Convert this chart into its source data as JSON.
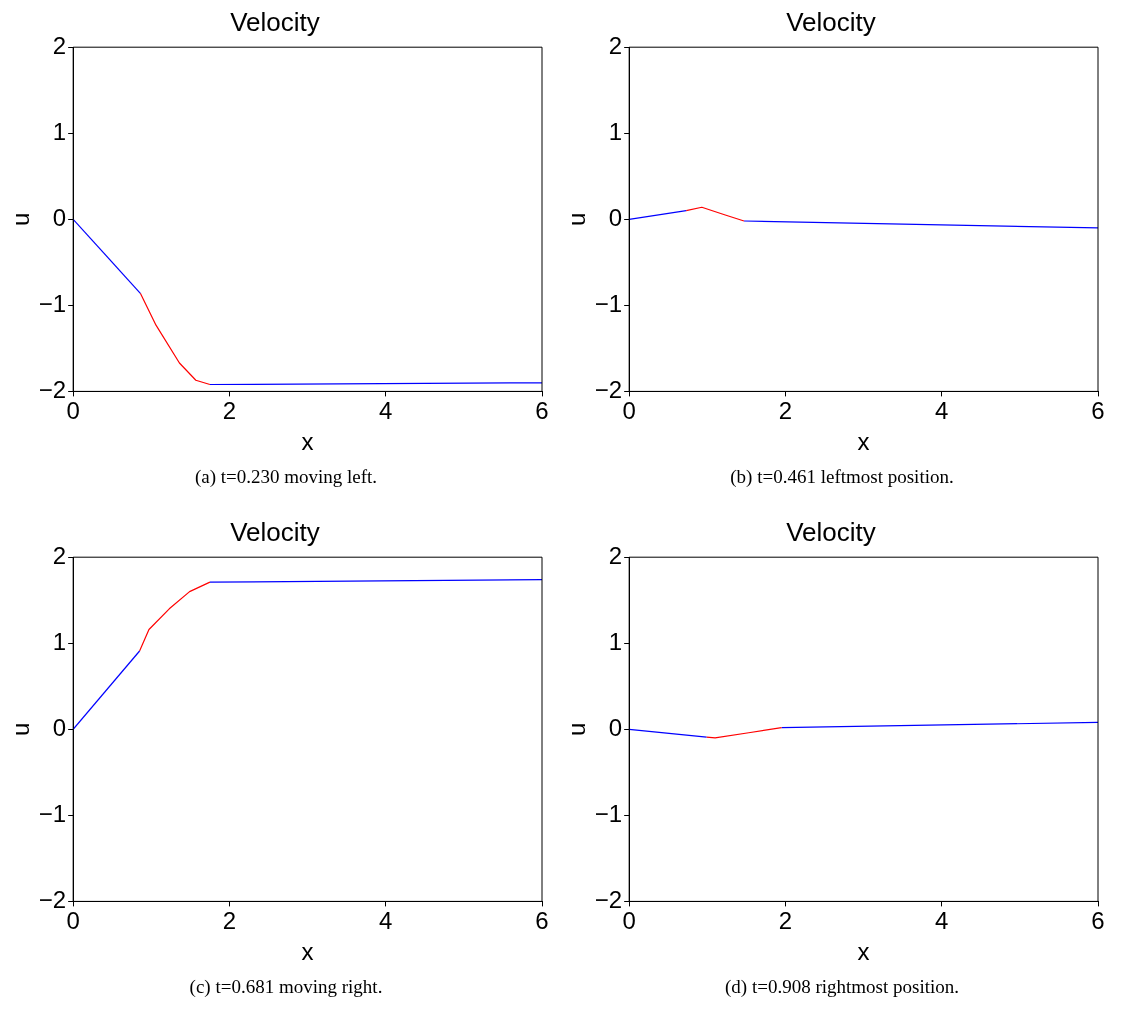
{
  "chart_data": [
    {
      "type": "line",
      "title": "Velocity",
      "xlabel": "x",
      "ylabel": "u",
      "xlim": [
        0,
        6
      ],
      "ylim": [
        -2,
        2
      ],
      "xticks": [
        0,
        2,
        4,
        6
      ],
      "yticks": [
        -2,
        -1,
        0,
        1,
        2
      ],
      "grid": false,
      "legend": false,
      "marker": "none",
      "line_style": "solid",
      "annotations": [
        "(a)  t=0.230 moving left."
      ],
      "series": [
        {
          "color": "#0000ff",
          "x": [
            0,
            0.86
          ],
          "values": [
            0,
            -0.86
          ]
        },
        {
          "color": "#ff0000",
          "x": [
            0.86,
            1.06,
            1.36,
            1.57,
            1.75
          ],
          "values": [
            -0.86,
            -1.23,
            -1.67,
            -1.87,
            -1.92
          ]
        },
        {
          "color": "#0000ff",
          "x": [
            1.75,
            6
          ],
          "values": [
            -1.92,
            -1.9
          ]
        }
      ]
    },
    {
      "type": "line",
      "title": "Velocity",
      "xlabel": "x",
      "ylabel": "u",
      "xlim": [
        0,
        6
      ],
      "ylim": [
        -2,
        2
      ],
      "xticks": [
        0,
        2,
        4,
        6
      ],
      "yticks": [
        -2,
        -1,
        0,
        1,
        2
      ],
      "grid": false,
      "legend": false,
      "marker": "none",
      "line_style": "solid",
      "annotations": [
        "(b)  t=0.461 leftmost position."
      ],
      "series": [
        {
          "color": "#0000ff",
          "x": [
            0,
            0.73
          ],
          "values": [
            0,
            0.1
          ]
        },
        {
          "color": "#ff0000",
          "x": [
            0.73,
            0.93,
            1.23,
            1.47
          ],
          "values": [
            0.1,
            0.14,
            0.05,
            -0.02
          ]
        },
        {
          "color": "#0000ff",
          "x": [
            1.47,
            6
          ],
          "values": [
            -0.02,
            -0.1
          ]
        }
      ]
    },
    {
      "type": "line",
      "title": "Velocity",
      "xlabel": "x",
      "ylabel": "u",
      "xlim": [
        0,
        6
      ],
      "ylim": [
        -2,
        2
      ],
      "xticks": [
        0,
        2,
        4,
        6
      ],
      "yticks": [
        -2,
        -1,
        0,
        1,
        2
      ],
      "grid": false,
      "legend": false,
      "marker": "none",
      "line_style": "solid",
      "annotations": [
        "(c)  t=0.681 moving right."
      ],
      "series": [
        {
          "color": "#0000ff",
          "x": [
            0,
            0.85
          ],
          "values": [
            0,
            0.91
          ]
        },
        {
          "color": "#ff0000",
          "x": [
            0.85,
            0.97,
            1.23,
            1.49,
            1.75
          ],
          "values": [
            0.91,
            1.16,
            1.4,
            1.6,
            1.71
          ]
        },
        {
          "color": "#0000ff",
          "x": [
            1.75,
            6
          ],
          "values": [
            1.71,
            1.74
          ]
        }
      ]
    },
    {
      "type": "line",
      "title": "Velocity",
      "xlabel": "x",
      "ylabel": "u",
      "xlim": [
        0,
        6
      ],
      "ylim": [
        -2,
        2
      ],
      "xticks": [
        0,
        2,
        4,
        6
      ],
      "yticks": [
        -2,
        -1,
        0,
        1,
        2
      ],
      "grid": false,
      "legend": false,
      "marker": "none",
      "line_style": "solid",
      "annotations": [
        "(d)  t=0.908 rightmost position."
      ],
      "series": [
        {
          "color": "#0000ff",
          "x": [
            0,
            0.99
          ],
          "values": [
            0,
            -0.09
          ]
        },
        {
          "color": "#ff0000",
          "x": [
            0.99,
            1.1,
            1.53,
            1.95
          ],
          "values": [
            -0.09,
            -0.1,
            -0.04,
            0.02
          ]
        },
        {
          "color": "#0000ff",
          "x": [
            1.95,
            6
          ],
          "values": [
            0.02,
            0.08
          ]
        }
      ]
    }
  ]
}
